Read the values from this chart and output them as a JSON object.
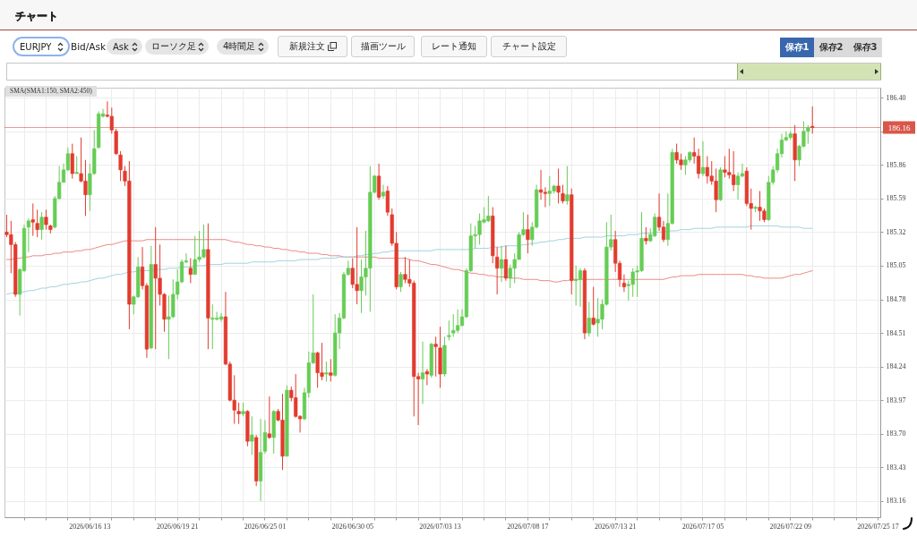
{
  "chart_data": {
    "type": "candlestick",
    "title": "チャート",
    "annotations": [
      "SMA(SMA1:150, SMA2:450)",
      "EURJPY",
      "Bid/Ask",
      "Ask",
      "ローソク足",
      "4時間足",
      "新規注文",
      "描画ツール",
      "レート通知",
      "チャート設定",
      "保存1",
      "保存2",
      "保存3"
    ],
    "categories": [
      null,
      null,
      null,
      null,
      null,
      null,
      null,
      null,
      null,
      null,
      null,
      null,
      null,
      null,
      null,
      null,
      null,
      null,
      null,
      "2026/06/16 13",
      null,
      null,
      null,
      null,
      null,
      null,
      null,
      null,
      null,
      null,
      null,
      null,
      null,
      null,
      null,
      null,
      null,
      null,
      null,
      "2026/06/19 21",
      null,
      null,
      null,
      null,
      null,
      null,
      null,
      null,
      null,
      null,
      null,
      null,
      null,
      null,
      null,
      null,
      null,
      null,
      null,
      "2026/06/25 01",
      null,
      null,
      null,
      null,
      null,
      null,
      null,
      null,
      null,
      null,
      null,
      null,
      null,
      null,
      null,
      null,
      null,
      null,
      null,
      "2026/06/30 05",
      null,
      null,
      null,
      null,
      null,
      null,
      null,
      null,
      null,
      null,
      null,
      null,
      null,
      null,
      null,
      null,
      null,
      null,
      null,
      "2026/07/03 13",
      null,
      null,
      null,
      null,
      null,
      null,
      null,
      null,
      null,
      null,
      null,
      null,
      null,
      null,
      null,
      null,
      null,
      null,
      null,
      "2026/07/08 17",
      null,
      null,
      null,
      null,
      null,
      null,
      null,
      null,
      null,
      null,
      null,
      null,
      null,
      null,
      null,
      null,
      null,
      null,
      null,
      "2026/07/13 21",
      null,
      null,
      null,
      null,
      null,
      null,
      null,
      null,
      null,
      null,
      null,
      null,
      null,
      null,
      null,
      null,
      null,
      null,
      null,
      "2026/07/17 05",
      null,
      null,
      null,
      null,
      null,
      null,
      null,
      null,
      null,
      null,
      null,
      null,
      null,
      null,
      null,
      null,
      null,
      null,
      null,
      "2026/07/22 09",
      null,
      null,
      null,
      null,
      null,
      null,
      null,
      null,
      null,
      null,
      null,
      null,
      null,
      null,
      null,
      null,
      null,
      null,
      null,
      "2026/07/25 17"
    ],
    "ohlc": [
      [
        185.32,
        185.46,
        185.28,
        185.3
      ],
      [
        185.3,
        185.41,
        184.99,
        185.22
      ],
      [
        185.22,
        185.24,
        184.8,
        184.82
      ],
      [
        184.82,
        185.03,
        184.65,
        185.02
      ],
      [
        185.01,
        185.38,
        185.0,
        185.35
      ],
      [
        185.36,
        185.43,
        185.16,
        185.41
      ],
      [
        185.42,
        185.55,
        185.29,
        185.4
      ],
      [
        185.39,
        185.5,
        185.28,
        185.34
      ],
      [
        185.34,
        185.48,
        185.26,
        185.44
      ],
      [
        185.44,
        185.5,
        185.34,
        185.38
      ],
      [
        185.37,
        185.38,
        185.31,
        185.34
      ],
      [
        185.36,
        185.61,
        185.35,
        185.59
      ],
      [
        185.59,
        185.85,
        185.58,
        185.72
      ],
      [
        185.72,
        185.87,
        185.72,
        185.82
      ],
      [
        185.82,
        186.0,
        185.81,
        185.95
      ],
      [
        185.95,
        186.03,
        185.75,
        185.79
      ],
      [
        185.79,
        185.93,
        185.79,
        185.8
      ],
      [
        185.79,
        186.08,
        185.72,
        185.73
      ],
      [
        185.73,
        185.9,
        185.45,
        185.62
      ],
      [
        185.62,
        185.87,
        185.49,
        185.79
      ],
      [
        185.79,
        186.14,
        185.78,
        185.99
      ],
      [
        186.0,
        186.29,
        185.99,
        186.27
      ],
      [
        186.25,
        186.31,
        186.24,
        186.27
      ],
      [
        186.26,
        186.37,
        186.24,
        186.25
      ],
      [
        186.25,
        186.32,
        186.11,
        186.14
      ],
      [
        186.13,
        186.15,
        185.94,
        185.95
      ],
      [
        185.94,
        185.97,
        185.73,
        185.82
      ],
      [
        185.81,
        185.85,
        185.69,
        185.73
      ],
      [
        185.73,
        185.89,
        184.54,
        184.74
      ],
      [
        184.74,
        184.81,
        184.66,
        184.8
      ],
      [
        184.8,
        185.12,
        184.79,
        185.04
      ],
      [
        185.04,
        185.2,
        184.86,
        184.89
      ],
      [
        184.89,
        184.91,
        184.31,
        184.38
      ],
      [
        184.39,
        185.21,
        184.38,
        185.06
      ],
      [
        185.06,
        185.36,
        184.38,
        184.95
      ],
      [
        184.95,
        185.22,
        184.73,
        184.82
      ],
      [
        184.82,
        184.83,
        184.52,
        184.62
      ],
      [
        184.62,
        184.81,
        184.3,
        184.64
      ],
      [
        184.64,
        184.94,
        184.63,
        184.82
      ],
      [
        184.82,
        185.02,
        184.78,
        184.92
      ],
      [
        184.92,
        185.1,
        184.91,
        185.08
      ],
      [
        185.08,
        185.15,
        185.07,
        185.09
      ],
      [
        185.03,
        185.11,
        184.91,
        184.98
      ],
      [
        184.98,
        185.29,
        184.98,
        185.1
      ],
      [
        185.1,
        185.33,
        185.08,
        185.12
      ],
      [
        185.12,
        185.38,
        185.11,
        185.18
      ],
      [
        185.18,
        185.39,
        184.38,
        184.63
      ],
      [
        184.62,
        184.74,
        184.38,
        184.63
      ],
      [
        184.62,
        184.68,
        184.61,
        184.63
      ],
      [
        184.62,
        184.67,
        184.6,
        184.64
      ],
      [
        184.64,
        184.84,
        184.25,
        184.26
      ],
      [
        184.26,
        184.28,
        183.96,
        183.97
      ],
      [
        183.97,
        184.17,
        183.78,
        183.89
      ],
      [
        183.88,
        183.95,
        183.78,
        183.86
      ],
      [
        183.86,
        183.95,
        183.84,
        183.88
      ],
      [
        183.88,
        183.89,
        183.6,
        183.64
      ],
      [
        183.64,
        183.84,
        183.53,
        183.69
      ],
      [
        183.67,
        183.69,
        183.28,
        183.32
      ],
      [
        183.32,
        183.82,
        183.16,
        183.55
      ],
      [
        183.56,
        183.81,
        183.54,
        183.71
      ],
      [
        183.7,
        184.0,
        183.66,
        183.67
      ],
      [
        183.67,
        183.89,
        183.54,
        183.88
      ],
      [
        183.88,
        183.9,
        183.8,
        183.81
      ],
      [
        183.81,
        184.02,
        183.41,
        183.52
      ],
      [
        183.52,
        184.09,
        183.52,
        184.05
      ],
      [
        184.05,
        184.08,
        183.96,
        183.99
      ],
      [
        183.99,
        184.18,
        183.83,
        183.84
      ],
      [
        183.84,
        183.85,
        183.71,
        183.82
      ],
      [
        183.82,
        184.07,
        183.81,
        184.03
      ],
      [
        184.03,
        184.36,
        183.99,
        184.27
      ],
      [
        184.27,
        184.82,
        184.26,
        184.35
      ],
      [
        184.35,
        184.36,
        184.07,
        184.19
      ],
      [
        184.19,
        184.43,
        184.13,
        184.16
      ],
      [
        184.18,
        184.28,
        184.12,
        184.19
      ],
      [
        184.19,
        184.3,
        184.12,
        184.17
      ],
      [
        184.17,
        184.66,
        184.16,
        184.51
      ],
      [
        184.51,
        184.67,
        184.38,
        184.63
      ],
      [
        184.63,
        185.0,
        184.62,
        184.98
      ],
      [
        184.98,
        185.09,
        184.97,
        185.03
      ],
      [
        185.03,
        185.11,
        184.87,
        184.9
      ],
      [
        184.9,
        185.36,
        184.74,
        184.85
      ],
      [
        184.85,
        185.1,
        184.67,
        184.96
      ],
      [
        184.96,
        185.33,
        184.81,
        185.03
      ],
      [
        185.03,
        185.85,
        184.68,
        185.64
      ],
      [
        185.64,
        185.78,
        185.63,
        185.77
      ],
      [
        185.77,
        185.87,
        185.58,
        185.6
      ],
      [
        185.61,
        185.7,
        185.59,
        185.64
      ],
      [
        185.65,
        185.69,
        185.45,
        185.48
      ],
      [
        185.46,
        185.51,
        185.21,
        185.23
      ],
      [
        185.23,
        185.32,
        184.86,
        184.88
      ],
      [
        184.88,
        185.0,
        184.84,
        184.98
      ],
      [
        184.98,
        185.12,
        184.91,
        184.94
      ],
      [
        184.94,
        185.1,
        184.88,
        184.91
      ],
      [
        184.91,
        184.93,
        183.84,
        184.16
      ],
      [
        184.16,
        184.19,
        183.77,
        184.14
      ],
      [
        184.14,
        184.44,
        183.94,
        184.19
      ],
      [
        184.2,
        184.22,
        184.09,
        184.18
      ],
      [
        184.17,
        184.43,
        184.15,
        184.42
      ],
      [
        184.42,
        184.48,
        184.16,
        184.4
      ],
      [
        184.39,
        184.56,
        184.07,
        184.18
      ],
      [
        184.18,
        184.48,
        184.16,
        184.41
      ],
      [
        184.48,
        184.61,
        184.45,
        184.49
      ],
      [
        184.51,
        184.66,
        184.48,
        184.53
      ],
      [
        184.53,
        184.7,
        184.51,
        184.57
      ],
      [
        184.57,
        184.7,
        184.56,
        184.64
      ],
      [
        184.64,
        185.03,
        184.63,
        185.01
      ],
      [
        185.01,
        185.39,
        185.0,
        185.29
      ],
      [
        185.29,
        185.37,
        185.19,
        185.3
      ],
      [
        185.3,
        185.47,
        185.22,
        185.41
      ],
      [
        185.4,
        185.52,
        185.39,
        185.42
      ],
      [
        185.41,
        185.61,
        185.4,
        185.45
      ],
      [
        185.45,
        185.52,
        185.07,
        185.13
      ],
      [
        185.12,
        185.2,
        184.82,
        185.03
      ],
      [
        185.03,
        185.21,
        184.92,
        185.1
      ],
      [
        185.1,
        185.21,
        184.93,
        184.95
      ],
      [
        184.95,
        185.06,
        184.87,
        185.03
      ],
      [
        185.03,
        185.15,
        184.91,
        185.1
      ],
      [
        185.1,
        185.32,
        185.1,
        185.3
      ],
      [
        185.3,
        185.48,
        185.29,
        185.34
      ],
      [
        185.34,
        185.46,
        185.15,
        185.26
      ],
      [
        185.26,
        185.4,
        185.21,
        185.36
      ],
      [
        185.36,
        185.7,
        185.35,
        185.66
      ],
      [
        185.66,
        185.82,
        185.58,
        185.64
      ],
      [
        185.64,
        185.68,
        185.52,
        185.63
      ],
      [
        185.63,
        185.77,
        185.53,
        185.65
      ],
      [
        185.65,
        185.7,
        185.63,
        185.69
      ],
      [
        185.69,
        185.83,
        185.55,
        185.64
      ],
      [
        185.63,
        185.7,
        185.55,
        185.57
      ],
      [
        185.57,
        185.85,
        185.54,
        185.62
      ],
      [
        185.62,
        185.67,
        184.82,
        184.93
      ],
      [
        184.93,
        185.05,
        184.73,
        184.94
      ],
      [
        184.94,
        185.03,
        184.72,
        185.01
      ],
      [
        185.01,
        185.03,
        184.46,
        184.51
      ],
      [
        184.51,
        184.76,
        184.48,
        184.63
      ],
      [
        184.63,
        184.88,
        184.57,
        184.58
      ],
      [
        184.59,
        184.79,
        184.48,
        184.62
      ],
      [
        184.62,
        184.78,
        184.54,
        184.74
      ],
      [
        184.74,
        185.4,
        184.73,
        185.2
      ],
      [
        185.2,
        185.46,
        185.17,
        185.26
      ],
      [
        185.26,
        185.33,
        185.0,
        185.07
      ],
      [
        185.07,
        185.09,
        184.88,
        184.94
      ],
      [
        184.91,
        184.98,
        184.84,
        184.88
      ],
      [
        184.89,
        184.93,
        184.77,
        184.9
      ],
      [
        184.9,
        185.03,
        184.8,
        185.0
      ],
      [
        185.0,
        185.05,
        184.8,
        185.01
      ],
      [
        185.01,
        185.48,
        185.0,
        185.27
      ],
      [
        185.27,
        185.36,
        185.22,
        185.25
      ],
      [
        185.25,
        185.35,
        185.24,
        185.3
      ],
      [
        185.29,
        185.47,
        185.28,
        185.44
      ],
      [
        185.44,
        185.63,
        185.33,
        185.36
      ],
      [
        185.36,
        185.41,
        185.24,
        185.26
      ],
      [
        185.26,
        185.63,
        185.21,
        185.39
      ],
      [
        185.39,
        185.99,
        185.38,
        185.96
      ],
      [
        185.96,
        186.03,
        185.87,
        185.9
      ],
      [
        185.9,
        185.95,
        185.82,
        185.86
      ],
      [
        185.86,
        185.93,
        185.78,
        185.9
      ],
      [
        185.9,
        185.97,
        185.88,
        185.96
      ],
      [
        185.96,
        186.08,
        185.87,
        185.93
      ],
      [
        185.93,
        185.99,
        185.75,
        185.79
      ],
      [
        185.79,
        186.05,
        185.77,
        185.84
      ],
      [
        185.84,
        185.93,
        185.71,
        185.77
      ],
      [
        185.77,
        185.89,
        185.7,
        185.73
      ],
      [
        185.73,
        185.83,
        185.48,
        185.58
      ],
      [
        185.58,
        185.84,
        185.57,
        185.82
      ],
      [
        185.82,
        185.93,
        185.76,
        185.8
      ],
      [
        185.8,
        185.99,
        185.75,
        185.78
      ],
      [
        185.78,
        185.97,
        185.65,
        185.7
      ],
      [
        185.7,
        185.8,
        185.58,
        185.77
      ],
      [
        185.77,
        185.87,
        185.76,
        185.79
      ],
      [
        185.81,
        185.84,
        185.53,
        185.55
      ],
      [
        185.55,
        185.67,
        185.34,
        185.51
      ],
      [
        185.51,
        185.53,
        185.48,
        185.52
      ],
      [
        185.52,
        185.65,
        185.41,
        185.49
      ],
      [
        185.49,
        185.51,
        185.4,
        185.42
      ],
      [
        185.42,
        185.77,
        185.41,
        185.72
      ],
      [
        185.72,
        185.85,
        185.7,
        185.82
      ],
      [
        185.82,
        185.99,
        185.8,
        185.95
      ],
      [
        185.95,
        186.11,
        185.92,
        186.06
      ],
      [
        186.06,
        186.13,
        186.05,
        186.08
      ],
      [
        186.08,
        186.13,
        186.06,
        186.11
      ],
      [
        186.11,
        186.18,
        185.73,
        185.9
      ],
      [
        185.9,
        186.02,
        185.85,
        186.01
      ],
      [
        186.01,
        186.21,
        186.0,
        186.13
      ],
      [
        186.13,
        186.18,
        186.03,
        186.16
      ],
      [
        186.17,
        186.33,
        186.11,
        186.16
      ],
      null,
      null,
      null,
      null,
      null,
      null,
      null,
      null,
      null,
      null,
      null,
      null,
      null,
      null,
      null
    ],
    "colors": [
      "#e23b2e",
      "#e23b2e",
      "#e23b2e",
      "#66cc55",
      "#66cc55",
      "#66cc55",
      "#e23b2e",
      "#e23b2e",
      "#66cc55",
      "#e23b2e",
      "#e23b2e",
      "#66cc55",
      "#66cc55",
      "#66cc55",
      "#66cc55",
      "#e23b2e",
      "#66cc55",
      "#e23b2e",
      "#e23b2e",
      "#66cc55",
      "#66cc55",
      "#66cc55",
      "#66cc55",
      "#e23b2e",
      "#e23b2e",
      "#e23b2e",
      "#e23b2e",
      "#e23b2e",
      "#e23b2e",
      "#66cc55",
      "#66cc55",
      "#e23b2e",
      "#e23b2e",
      "#66cc55",
      "#e23b2e",
      "#e23b2e",
      "#e23b2e",
      "#66cc55",
      "#66cc55",
      "#66cc55",
      "#66cc55",
      "#66cc55",
      "#e23b2e",
      "#66cc55",
      "#66cc55",
      "#66cc55",
      "#e23b2e",
      "#66cc55",
      "#66cc55",
      "#66cc55",
      "#e23b2e",
      "#e23b2e",
      "#e23b2e",
      "#e23b2e",
      "#66cc55",
      "#e23b2e",
      "#66cc55",
      "#e23b2e",
      "#66cc55",
      "#66cc55",
      "#e23b2e",
      "#66cc55",
      "#e23b2e",
      "#e23b2e",
      "#66cc55",
      "#e23b2e",
      "#e23b2e",
      "#e23b2e",
      "#66cc55",
      "#66cc55",
      "#66cc55",
      "#e23b2e",
      "#e23b2e",
      "#66cc55",
      "#e23b2e",
      "#66cc55",
      "#66cc55",
      "#66cc55",
      "#66cc55",
      "#e23b2e",
      "#e23b2e",
      "#66cc55",
      "#66cc55",
      "#66cc55",
      "#66cc55",
      "#e23b2e",
      "#66cc55",
      "#e23b2e",
      "#e23b2e",
      "#e23b2e",
      "#66cc55",
      "#e23b2e",
      "#e23b2e",
      "#e23b2e",
      "#e23b2e",
      "#66cc55",
      "#e23b2e",
      "#66cc55",
      "#e23b2e",
      "#e23b2e",
      "#66cc55",
      "#66cc55",
      "#66cc55",
      "#66cc55",
      "#66cc55",
      "#66cc55",
      "#66cc55",
      "#66cc55",
      "#66cc55",
      "#66cc55",
      "#66cc55",
      "#e23b2e",
      "#e23b2e",
      "#66cc55",
      "#e23b2e",
      "#66cc55",
      "#66cc55",
      "#66cc55",
      "#66cc55",
      "#e23b2e",
      "#66cc55",
      "#66cc55",
      "#e23b2e",
      "#e23b2e",
      "#66cc55",
      "#66cc55",
      "#e23b2e",
      "#e23b2e",
      "#66cc55",
      "#e23b2e",
      "#66cc55",
      "#66cc55",
      "#e23b2e",
      "#66cc55",
      "#e23b2e",
      "#66cc55",
      "#66cc55",
      "#66cc55",
      "#66cc55",
      "#e23b2e",
      "#e23b2e",
      "#e23b2e",
      "#66cc55",
      "#66cc55",
      "#66cc55",
      "#66cc55",
      "#e23b2e",
      "#66cc55",
      "#66cc55",
      "#e23b2e",
      "#e23b2e",
      "#66cc55",
      "#66cc55",
      "#e23b2e",
      "#e23b2e",
      "#66cc55",
      "#66cc55",
      "#e23b2e",
      "#e23b2e",
      "#66cc55",
      "#e23b2e",
      "#e23b2e",
      "#e23b2e",
      "#66cc55",
      "#e23b2e",
      "#e23b2e",
      "#e23b2e",
      "#66cc55",
      "#66cc55",
      "#e23b2e",
      "#e23b2e",
      "#66cc55",
      "#e23b2e",
      "#e23b2e",
      "#66cc55",
      "#66cc55",
      "#66cc55",
      "#66cc55",
      "#66cc55",
      "#66cc55",
      "#e23b2e",
      "#66cc55",
      "#66cc55",
      "#66cc55",
      "#e23b2e",
      null,
      null,
      null,
      null,
      null,
      null,
      null,
      null,
      null,
      null,
      null,
      null,
      null,
      null,
      null
    ],
    "series": [
      {
        "type": "line",
        "color": "#ec8a84",
        "values": [
          185.1,
          185.1,
          185.11,
          185.11,
          185.12,
          185.12,
          185.13,
          185.13,
          185.13,
          185.14,
          185.14,
          185.15,
          185.15,
          185.16,
          185.16,
          185.16,
          185.17,
          185.17,
          185.18,
          185.18,
          185.19,
          185.2,
          185.21,
          185.22,
          185.22,
          185.23,
          185.24,
          185.25,
          185.25,
          185.25,
          185.25,
          185.25,
          185.26,
          185.26,
          185.26,
          185.26,
          185.26,
          185.26,
          185.26,
          185.26,
          185.26,
          185.26,
          185.26,
          185.26,
          185.26,
          185.26,
          185.26,
          185.26,
          185.26,
          185.26,
          185.26,
          185.25,
          185.24,
          185.24,
          185.23,
          185.22,
          185.22,
          185.21,
          185.21,
          185.2,
          185.2,
          185.19,
          185.19,
          185.18,
          185.18,
          185.17,
          185.17,
          185.16,
          185.16,
          185.15,
          185.15,
          185.15,
          185.14,
          185.14,
          185.13,
          185.13,
          185.13,
          185.12,
          185.12,
          185.12,
          185.12,
          185.12,
          185.12,
          185.12,
          185.12,
          185.11,
          185.11,
          185.11,
          185.11,
          185.11,
          185.11,
          185.11,
          185.1,
          185.09,
          185.09,
          185.08,
          185.07,
          185.06,
          185.06,
          185.05,
          185.04,
          185.03,
          185.02,
          185.02,
          185.01,
          185.0,
          184.99,
          184.99,
          184.98,
          184.98,
          184.97,
          184.97,
          184.96,
          184.96,
          184.96,
          184.95,
          184.95,
          184.95,
          184.94,
          184.94,
          184.94,
          184.94,
          184.93,
          184.93,
          184.93,
          184.92,
          184.92,
          184.93,
          184.93,
          184.94,
          184.94,
          184.94,
          184.94,
          184.94,
          184.94,
          184.94,
          184.94,
          184.94,
          184.94,
          184.94,
          184.94,
          184.94,
          184.94,
          184.94,
          184.94,
          184.94,
          184.94,
          184.94,
          184.94,
          184.94,
          184.94,
          184.95,
          184.96,
          184.96,
          184.97,
          184.97,
          184.97,
          184.97,
          184.98,
          184.98,
          184.98,
          184.98,
          184.98,
          184.98,
          184.98,
          184.98,
          184.98,
          184.98,
          184.98,
          184.97,
          184.97,
          184.96,
          184.96,
          184.95,
          184.95,
          184.95,
          184.95,
          184.95,
          184.96,
          184.97,
          184.98,
          184.98,
          184.99,
          185.0,
          185.01,
          null,
          null,
          null,
          null,
          null,
          null,
          null,
          null,
          null,
          null,
          null,
          null,
          null,
          null,
          null
        ]
      },
      {
        "type": "line",
        "color": "#9fd3df",
        "values": [
          184.82,
          184.83,
          184.83,
          184.84,
          184.84,
          184.85,
          184.85,
          184.86,
          184.87,
          184.87,
          184.88,
          184.88,
          184.89,
          184.9,
          184.9,
          184.91,
          184.91,
          184.92,
          184.92,
          184.93,
          184.94,
          184.95,
          184.95,
          184.96,
          184.97,
          184.98,
          184.98,
          184.99,
          185.0,
          185.0,
          185.01,
          185.01,
          185.01,
          185.01,
          185.02,
          185.02,
          185.02,
          185.03,
          185.03,
          185.03,
          185.04,
          185.04,
          185.04,
          185.05,
          185.05,
          185.05,
          185.06,
          185.06,
          185.06,
          185.06,
          185.07,
          185.07,
          185.07,
          185.07,
          185.07,
          185.07,
          185.08,
          185.08,
          185.08,
          185.08,
          185.08,
          185.08,
          185.09,
          185.09,
          185.09,
          185.09,
          185.09,
          185.1,
          185.1,
          185.1,
          185.1,
          185.1,
          185.11,
          185.11,
          185.11,
          185.11,
          185.12,
          185.12,
          185.12,
          185.12,
          185.13,
          185.13,
          185.14,
          185.14,
          185.15,
          185.15,
          185.16,
          185.16,
          185.17,
          185.17,
          185.17,
          185.17,
          185.17,
          185.17,
          185.17,
          185.17,
          185.17,
          185.17,
          185.18,
          185.18,
          185.18,
          185.18,
          185.18,
          185.18,
          185.18,
          185.18,
          185.18,
          185.19,
          185.19,
          185.19,
          185.19,
          185.2,
          185.2,
          185.2,
          185.21,
          185.21,
          185.21,
          185.21,
          185.22,
          185.22,
          185.23,
          185.23,
          185.24,
          185.24,
          185.25,
          185.25,
          185.26,
          185.26,
          185.27,
          185.27,
          185.27,
          185.27,
          185.28,
          185.28,
          185.28,
          185.28,
          185.28,
          185.29,
          185.29,
          185.29,
          185.29,
          185.29,
          185.3,
          185.3,
          185.3,
          185.31,
          185.31,
          185.31,
          185.32,
          185.32,
          185.32,
          185.33,
          185.33,
          185.33,
          185.34,
          185.34,
          185.34,
          185.35,
          185.35,
          185.35,
          185.35,
          185.35,
          185.36,
          185.36,
          185.36,
          185.36,
          185.36,
          185.36,
          185.36,
          185.36,
          185.37,
          185.37,
          185.37,
          185.37,
          185.37,
          185.37,
          185.37,
          185.36,
          185.36,
          185.36,
          185.36,
          185.36,
          185.35,
          185.35,
          185.35,
          null,
          null,
          null,
          null,
          null,
          null,
          null,
          null,
          null,
          null,
          null,
          null,
          null,
          null,
          null
        ]
      }
    ],
    "ylim": [
      183.03,
      186.48
    ],
    "yticks": [
      183.16,
      183.43,
      {
        "value": 183.7,
        "label": "183.70"
      },
      183.97,
      184.24,
      184.51,
      184.78,
      185.05,
      185.32,
      185.59,
      185.86,
      {
        "value": 186.13,
        "label": null
      },
      {
        "value": 186.4,
        "label": "186.40"
      }
    ],
    "grid": true,
    "ref_lines": [
      {
        "axis": "y",
        "value": 186.16,
        "label": "186.16",
        "color": "#d9574a"
      }
    ]
  }
}
